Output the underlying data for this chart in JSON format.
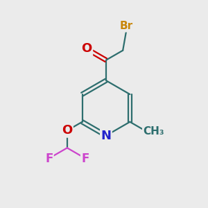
{
  "background_color": "#ebebeb",
  "bond_color": "#2d6e6e",
  "bond_width": 1.6,
  "atom_colors": {
    "Br": "#c8860a",
    "O": "#cc0000",
    "N": "#2222cc",
    "F": "#cc44cc",
    "C": "#2d6e6e"
  },
  "font_size_atoms": 12
}
